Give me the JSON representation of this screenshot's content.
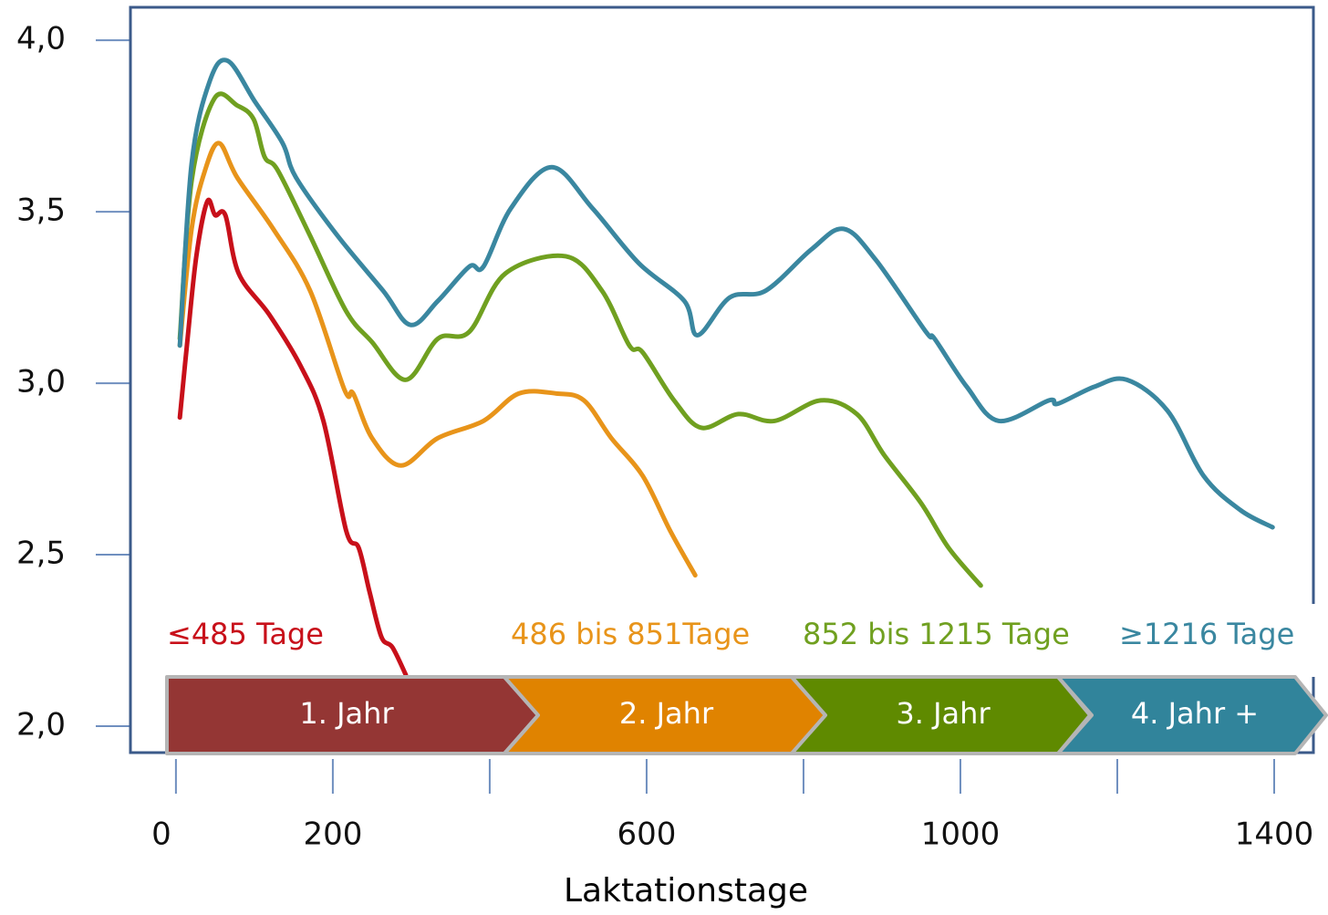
{
  "chart_data": {
    "type": "line",
    "x_label": "Laktationstage",
    "xlim": [
      -58,
      1450
    ],
    "ylim": [
      1.923,
      4.096
    ],
    "xticks": [
      0,
      200,
      600,
      1000,
      1400
    ],
    "xticks_minor": [
      400,
      800,
      1200
    ],
    "yticks": [
      {
        "value": 4.0,
        "label": "4,0"
      },
      {
        "value": 3.5,
        "label": "3,5"
      },
      {
        "value": 3.0,
        "label": "3,0"
      },
      {
        "value": 2.5,
        "label": "2,5"
      },
      {
        "value": 2.0,
        "label": "2,0"
      }
    ],
    "series": [
      {
        "name": "≤485 Tage",
        "color": "#c8101a",
        "x": [
          5,
          14,
          26,
          40,
          50,
          63,
          80,
          119,
          159,
          188,
          217,
          233,
          247,
          262,
          276,
          293
        ],
        "values": [
          2.9,
          3.11,
          3.37,
          3.53,
          3.49,
          3.49,
          3.32,
          3.2,
          3.05,
          2.89,
          2.57,
          2.52,
          2.39,
          2.26,
          2.23,
          2.15
        ]
      },
      {
        "name": "486 bis 851Tage",
        "color": "#e8941a",
        "x": [
          5,
          20,
          37,
          55,
          78,
          124,
          171,
          215,
          226,
          250,
          287,
          334,
          392,
          437,
          485,
          520,
          555,
          595,
          630,
          662
        ],
        "values": [
          3.11,
          3.45,
          3.62,
          3.7,
          3.6,
          3.45,
          3.27,
          2.98,
          2.97,
          2.84,
          2.76,
          2.84,
          2.89,
          2.97,
          2.97,
          2.95,
          2.84,
          2.73,
          2.57,
          2.44
        ]
      },
      {
        "name": "852 bis 1215 Tage",
        "color": "#70a020",
        "x": [
          5,
          20,
          49,
          78,
          99,
          113,
          130,
          171,
          217,
          250,
          293,
          334,
          374,
          420,
          497,
          543,
          578,
          595,
          635,
          670,
          717,
          763,
          822,
          868,
          903,
          950,
          985,
          1026
        ],
        "values": [
          3.13,
          3.59,
          3.83,
          3.81,
          3.77,
          3.66,
          3.62,
          3.43,
          3.21,
          3.12,
          3.01,
          3.13,
          3.15,
          3.32,
          3.37,
          3.27,
          3.11,
          3.09,
          2.95,
          2.87,
          2.91,
          2.89,
          2.95,
          2.91,
          2.79,
          2.65,
          2.52,
          2.41
        ]
      },
      {
        "name": "≥1216 Tage",
        "color": "#3a87a0",
        "x": [
          5,
          20,
          43,
          66,
          101,
          136,
          153,
          206,
          264,
          299,
          334,
          374,
          392,
          427,
          479,
          531,
          590,
          648,
          665,
          706,
          752,
          810,
          851,
          892,
          956,
          967,
          1008,
          1049,
          1113,
          1124,
          1171,
          1212,
          1264,
          1310,
          1357,
          1398
        ],
        "values": [
          3.11,
          3.64,
          3.88,
          3.94,
          3.82,
          3.7,
          3.6,
          3.43,
          3.27,
          3.17,
          3.24,
          3.34,
          3.34,
          3.51,
          3.63,
          3.51,
          3.35,
          3.24,
          3.14,
          3.25,
          3.27,
          3.39,
          3.45,
          3.36,
          3.15,
          3.13,
          2.99,
          2.89,
          2.95,
          2.94,
          2.99,
          3.01,
          2.92,
          2.73,
          2.63,
          2.58
        ]
      }
    ],
    "phases": [
      {
        "label": "1. Jahr",
        "color": "#943634"
      },
      {
        "label": "2. Jahr",
        "color": "#e08300"
      },
      {
        "label": "3. Jahr",
        "color": "#5f8a00"
      },
      {
        "label": "4. Jahr +",
        "color": "#31849b"
      }
    ]
  }
}
